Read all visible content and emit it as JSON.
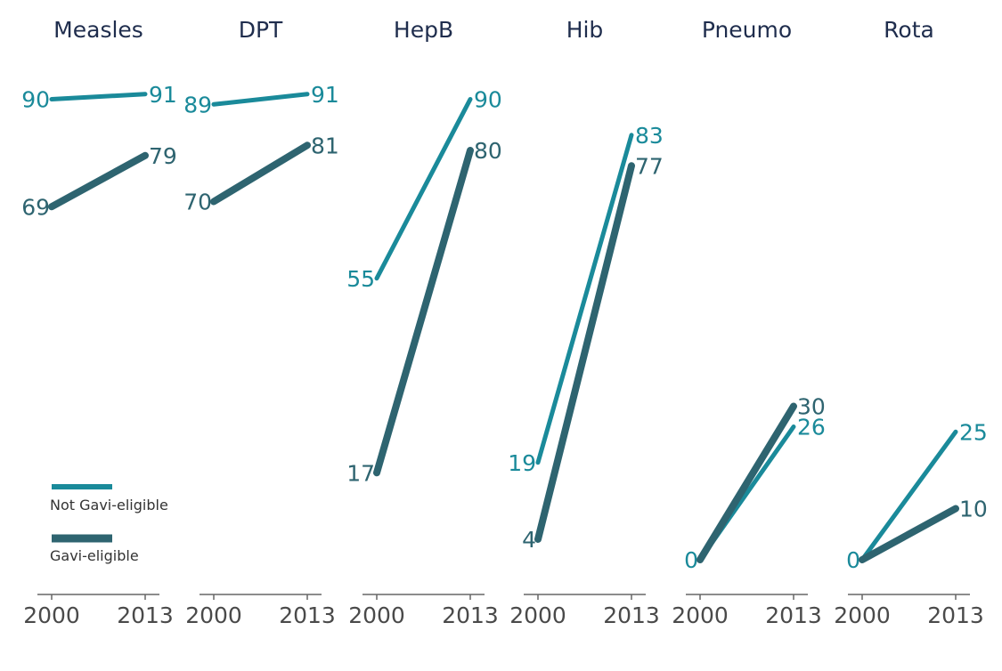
{
  "chart_data": {
    "type": "line",
    "subtype": "small-multiples slope chart",
    "x": [
      "2000",
      "2013"
    ],
    "ylim": [
      0,
      100
    ],
    "grid": false,
    "legend_position": "bottom-left of first panel",
    "colors": {
      "not_gavi": "#1a8a9a",
      "gavi": "#2e6470",
      "title": "#1f2d4d",
      "tick_label": "#4a4a4a",
      "axis": "#666666"
    },
    "legend": {
      "entries": [
        {
          "key": "not_gavi",
          "label": "Not Gavi-eligible"
        },
        {
          "key": "gavi",
          "label": "Gavi-eligible"
        }
      ]
    },
    "panels": [
      {
        "title": "Measles",
        "series": [
          {
            "key": "not_gavi",
            "values": [
              90,
              91
            ],
            "labels": [
              "90",
              "91"
            ]
          },
          {
            "key": "gavi",
            "values": [
              69,
              79
            ],
            "labels": [
              "69",
              "79"
            ]
          }
        ]
      },
      {
        "title": "DPT",
        "series": [
          {
            "key": "not_gavi",
            "values": [
              89,
              91
            ],
            "labels": [
              "89",
              "91"
            ]
          },
          {
            "key": "gavi",
            "values": [
              70,
              81
            ],
            "labels": [
              "70",
              "81"
            ]
          }
        ]
      },
      {
        "title": "HepB",
        "series": [
          {
            "key": "not_gavi",
            "values": [
              55,
              90
            ],
            "labels": [
              "55",
              "90"
            ]
          },
          {
            "key": "gavi",
            "values": [
              17,
              80
            ],
            "labels": [
              "17",
              "80"
            ]
          }
        ]
      },
      {
        "title": "Hib",
        "series": [
          {
            "key": "not_gavi",
            "values": [
              19,
              83
            ],
            "labels": [
              "19",
              "83"
            ]
          },
          {
            "key": "gavi",
            "values": [
              4,
              77
            ],
            "labels": [
              "4",
              "77"
            ]
          }
        ]
      },
      {
        "title": "Pneumo",
        "series": [
          {
            "key": "not_gavi",
            "values": [
              0,
              26
            ],
            "labels": [
              "0",
              "26"
            ]
          },
          {
            "key": "gavi",
            "values": [
              0,
              30
            ],
            "labels": [
              "",
              "30"
            ]
          }
        ]
      },
      {
        "title": "Rota",
        "series": [
          {
            "key": "not_gavi",
            "values": [
              0,
              25
            ],
            "labels": [
              "0",
              "25"
            ]
          },
          {
            "key": "gavi",
            "values": [
              0,
              10
            ],
            "labels": [
              "",
              "10"
            ]
          }
        ]
      }
    ]
  }
}
